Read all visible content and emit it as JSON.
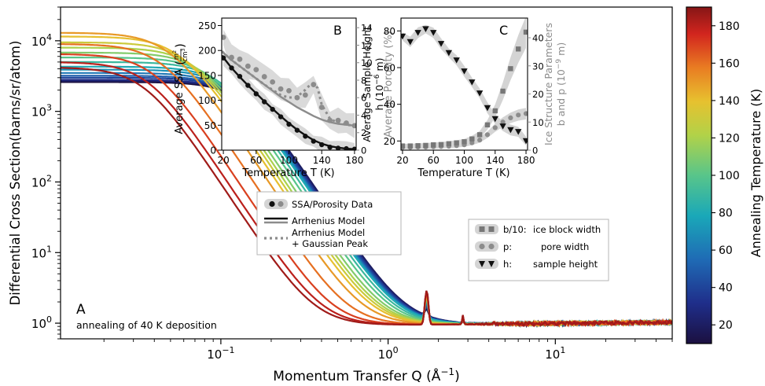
{
  "chart_data": [
    {
      "id": "A",
      "type": "line",
      "panel_label": "A",
      "annotation": "annealing of 40 K deposition",
      "xlabel": "Momentum Transfer Q (Å",
      "xlabel_sup": "−1",
      "xlabel_end": ")",
      "ylabel": "Differential Cross Section(barns/sr/atom)",
      "x_scale": "log",
      "y_scale": "log",
      "xlim": [
        0.011,
        50
      ],
      "ylim": [
        0.6,
        30000
      ],
      "x_ticks": [
        {
          "value": 0.1,
          "base": "10",
          "exp": "−1"
        },
        {
          "value": 1,
          "base": "10",
          "exp": "0"
        },
        {
          "value": 10,
          "base": "10",
          "exp": "1"
        }
      ],
      "y_ticks": [
        {
          "value": 1,
          "base": "10",
          "exp": "0"
        },
        {
          "value": 10,
          "base": "10",
          "exp": "1"
        },
        {
          "value": 100,
          "base": "10",
          "exp": "2"
        },
        {
          "value": 1000,
          "base": "10",
          "exp": "3"
        },
        {
          "value": 10000,
          "base": "10",
          "exp": "4"
        }
      ],
      "curve_params": {
        "temperatures": [
          10,
          20,
          30,
          40,
          50,
          60,
          70,
          80,
          90,
          100,
          110,
          120,
          130,
          140,
          150,
          160,
          170,
          180,
          185
        ],
        "low_q_value": [
          2600,
          2700,
          2800,
          3000,
          3200,
          3500,
          3900,
          4300,
          5000,
          5800,
          6800,
          8000,
          9500,
          11500,
          13000,
          9000,
          6500,
          5000,
          4200
        ],
        "knee_q": [
          0.14,
          0.14,
          0.135,
          0.13,
          0.125,
          0.12,
          0.115,
          0.11,
          0.1,
          0.09,
          0.08,
          0.072,
          0.065,
          0.058,
          0.05,
          0.045,
          0.04,
          0.037,
          0.035
        ],
        "background": 0.9,
        "bragg_peaks": [
          {
            "q": 1.7,
            "height_min": 0.3,
            "height_max": 2.0,
            "width": 0.05
          },
          {
            "q": 2.8,
            "height_min": 0.05,
            "height_max": 0.35,
            "width": 0.035
          },
          {
            "q": 4.3,
            "height_min": 0.03,
            "height_max": 0.2,
            "width": 0.03
          }
        ]
      },
      "colorbar": {
        "label": "Annealing Temperature (K)",
        "range": [
          10,
          190
        ],
        "ticks": [
          20,
          40,
          60,
          80,
          100,
          120,
          140,
          160,
          180
        ]
      }
    },
    {
      "id": "B",
      "type": "line",
      "panel_label": "B",
      "xlabel": "Temperature T (K)",
      "ylabel": "Average SSA",
      "ylabel_unit_num": "m",
      "ylabel_unit_den": "cm",
      "ylabel_right": "Average Porosity (%)",
      "xlim": [
        18,
        182
      ],
      "ylim": [
        0,
        265
      ],
      "ylim_right": [
        0,
        15.1
      ],
      "x_ticks": [
        20,
        60,
        100,
        140,
        180
      ],
      "y_ticks": [
        0,
        50,
        100,
        150,
        200,
        250
      ],
      "y_ticks_right": [
        0,
        2,
        4,
        6,
        8,
        10,
        12,
        14
      ],
      "ssa_data": {
        "x": [
          20,
          30,
          40,
          50,
          60,
          70,
          80,
          90,
          100,
          110,
          120,
          130,
          140,
          150,
          160,
          170,
          180
        ],
        "y": [
          185,
          165,
          148,
          130,
          113,
          97,
          82,
          67,
          52,
          40,
          28,
          18,
          11,
          6,
          4,
          3,
          2
        ]
      },
      "ssa_model": {
        "x": [
          18,
          30,
          40,
          50,
          60,
          70,
          80,
          90,
          100,
          110,
          120,
          130,
          140,
          150,
          160,
          170,
          180
        ],
        "y": [
          190,
          165,
          147,
          130,
          114,
          98,
          83,
          68,
          54,
          41,
          30,
          20,
          13,
          8,
          5,
          3,
          2
        ]
      },
      "porosity_data": {
        "x": [
          20,
          30,
          40,
          50,
          60,
          70,
          80,
          90,
          100,
          110,
          120,
          130,
          140,
          150,
          160,
          170,
          180
        ],
        "y": [
          12.9,
          10.6,
          10.4,
          9.6,
          9.2,
          8.4,
          7.8,
          7.0,
          6.8,
          6.0,
          6.3,
          7.5,
          4.9,
          3.4,
          3.4,
          3.1,
          2.8
        ]
      },
      "porosity_model": {
        "x": [
          18,
          30,
          40,
          50,
          60,
          70,
          80,
          90,
          100,
          110,
          120,
          130,
          140,
          150,
          160,
          170,
          180
        ],
        "y": [
          11.3,
          10.3,
          9.6,
          8.9,
          8.2,
          7.5,
          6.8,
          6.1,
          5.5,
          4.9,
          4.4,
          3.9,
          3.5,
          3.2,
          3.0,
          2.9,
          2.8
        ]
      },
      "porosity_peak_model": {
        "x": [
          18,
          30,
          40,
          50,
          60,
          70,
          80,
          90,
          100,
          110,
          120,
          125,
          130,
          135,
          140,
          150,
          160,
          170,
          180
        ],
        "y": [
          11.3,
          10.3,
          9.6,
          8.9,
          8.2,
          7.5,
          6.9,
          6.3,
          6.0,
          6.1,
          6.9,
          7.4,
          7.6,
          7.1,
          5.2,
          3.6,
          3.1,
          2.9,
          2.8
        ]
      }
    },
    {
      "id": "C",
      "type": "line",
      "panel_label": "C",
      "xlabel": "Temperature T (K)",
      "ylabel_line1": "Average Sample Height",
      "ylabel_line2": "h (10",
      "ylabel_line2_sup": "−6",
      "ylabel_line2_end": " m)",
      "ylabel_right_line1": "Ice Structure Parameters",
      "ylabel_right_line2": "b and p (10",
      "ylabel_right_line2_sup": "−9",
      "ylabel_right_line2_end": " m)",
      "xlim": [
        18,
        182
      ],
      "ylim": [
        15,
        87
      ],
      "ylim_right": [
        0,
        47
      ],
      "x_ticks": [
        20,
        60,
        100,
        140,
        180
      ],
      "y_ticks": [
        20,
        40,
        60,
        80
      ],
      "y_ticks_right": [
        0,
        10,
        20,
        30,
        40
      ],
      "height_h": {
        "x": [
          20,
          30,
          40,
          50,
          60,
          70,
          80,
          90,
          100,
          110,
          120,
          130,
          140,
          150,
          160,
          170,
          180
        ],
        "y": [
          77,
          74,
          79,
          81,
          79,
          73,
          68,
          64,
          58,
          52,
          46,
          38,
          32,
          28,
          26,
          25,
          20
        ]
      },
      "block_width_b10": {
        "x": [
          20,
          30,
          40,
          50,
          60,
          70,
          80,
          90,
          100,
          110,
          120,
          130,
          140,
          150,
          160,
          170,
          180
        ],
        "y": [
          1.5,
          1.5,
          1.6,
          1.7,
          1.9,
          2.0,
          2.3,
          2.6,
          3.0,
          4.0,
          5.5,
          9,
          14,
          21,
          29,
          36,
          42
        ]
      },
      "pore_width_p": {
        "x": [
          20,
          30,
          40,
          50,
          60,
          70,
          80,
          90,
          100,
          110,
          120,
          130,
          140,
          150,
          160,
          170,
          180
        ],
        "y": [
          1.0,
          1.0,
          1.1,
          1.1,
          1.2,
          1.3,
          1.4,
          1.6,
          1.9,
          2.6,
          3.6,
          5.5,
          8,
          10,
          11.5,
          12.5,
          13
        ]
      }
    }
  ],
  "legend_b": {
    "items": [
      {
        "label": "SSA/Porosity Data"
      },
      {
        "label": "Arrhenius Model"
      },
      {
        "label": "Arrhenius Model",
        "label2": "+ Gaussian Peak"
      }
    ]
  },
  "legend_c": {
    "items": [
      {
        "code": "b/10:",
        "label": "ice block width"
      },
      {
        "code": "p:",
        "label": "pore width"
      },
      {
        "code": "h:",
        "label": "sample height"
      }
    ]
  },
  "colors": {
    "data_dark": "#111111",
    "gray": "#8c8c8c",
    "band": "#d4d4d4",
    "dark_gray": "#777777",
    "axis": "#000000"
  }
}
